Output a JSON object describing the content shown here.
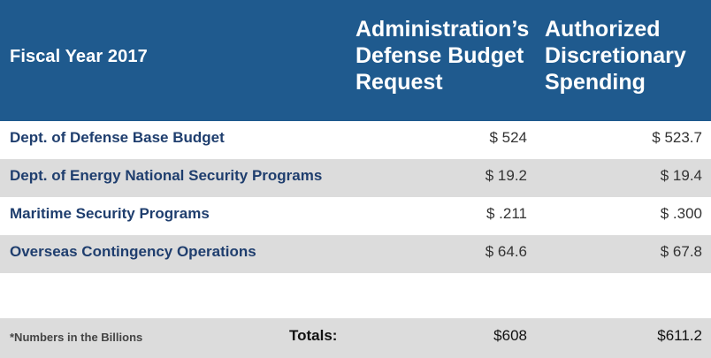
{
  "header": {
    "fiscal_year": "Fiscal Year 2017",
    "col_request": [
      "Administration’s",
      "Defense Budget",
      "Request"
    ],
    "col_authorized": [
      "Authorized",
      "Discretionary",
      "Spending"
    ]
  },
  "rows": [
    {
      "label": "Dept. of Defense Base Budget",
      "request": "$ 524",
      "authorized": "$ 523.7"
    },
    {
      "label": "Dept. of Energy National Security Programs",
      "request": "$ 19.2",
      "authorized": "$ 19.4"
    },
    {
      "label": "Maritime Security Programs",
      "request": "$ .211",
      "authorized": "$ .300"
    },
    {
      "label": "Overseas Contingency Operations",
      "request": "$ 64.6",
      "authorized": "$ 67.8"
    }
  ],
  "totals": {
    "note": "*Numbers in the Billions",
    "label": "Totals:",
    "request": "$608",
    "authorized": "$611.2"
  },
  "colors": {
    "header_bg": "#1f5a8e",
    "label_text": "#1f3e6e",
    "shade": "#dcdcdc"
  }
}
